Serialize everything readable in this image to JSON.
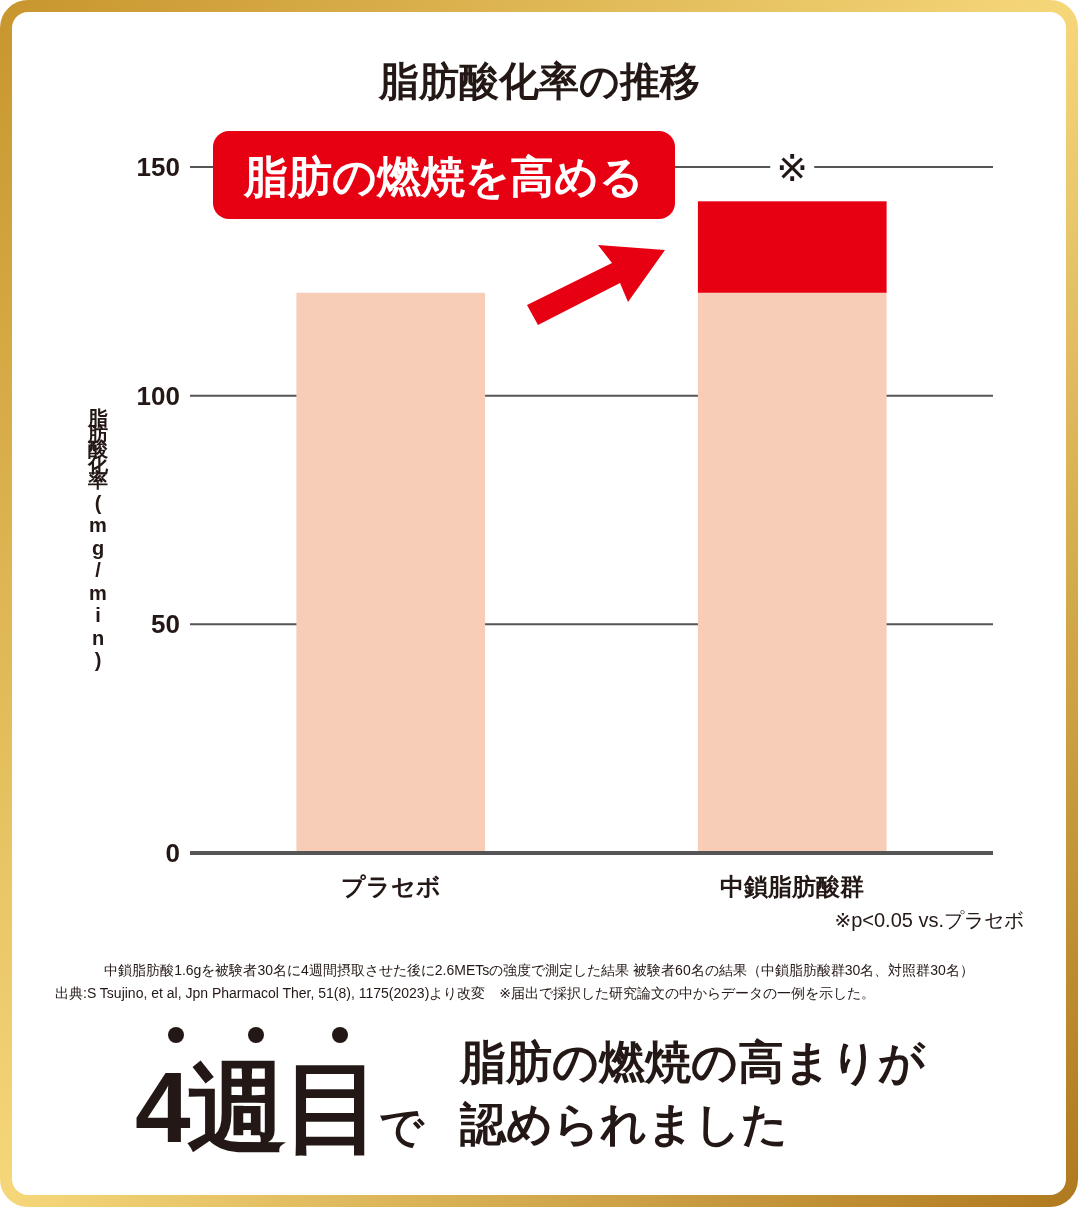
{
  "chart_data": {
    "type": "bar",
    "title": "脂肪酸化率の推移",
    "ylabel": "脂肪酸化率(mg/min)",
    "categories": [
      "プラセボ",
      "中鎖脂肪酸群"
    ],
    "stacked": true,
    "series": [
      {
        "color": "#f7cdb7",
        "values": [
          122.5,
          122.5
        ]
      },
      {
        "color": "#e60012",
        "values": [
          null,
          20
        ]
      }
    ],
    "ylim": [
      0,
      150
    ],
    "yticks": [
      0,
      50,
      100,
      150
    ],
    "grid": "y",
    "annotations": [
      "脂肪の燃焼を高める",
      {
        "text": "※",
        "x": "中鎖脂肪酸群",
        "y": 150
      },
      "※p<0.05  vs.プラセボ",
      "中鎖脂肪酸1.6gを被験者30名に4週間摂取させた後に2.6METsの強度で測定した結果 被験者60名の結果（中鎖脂肪酸群30名、対照群30名）",
      "出典:S Tsujino, et al, Jpn Pharmacol Ther, 51(8), 1175(2023)より改変　※届出で採択した研究論文の中からデータの一例を示した。",
      "4週目で",
      "脂肪の燃焼の高まりが",
      "認められました"
    ]
  }
}
